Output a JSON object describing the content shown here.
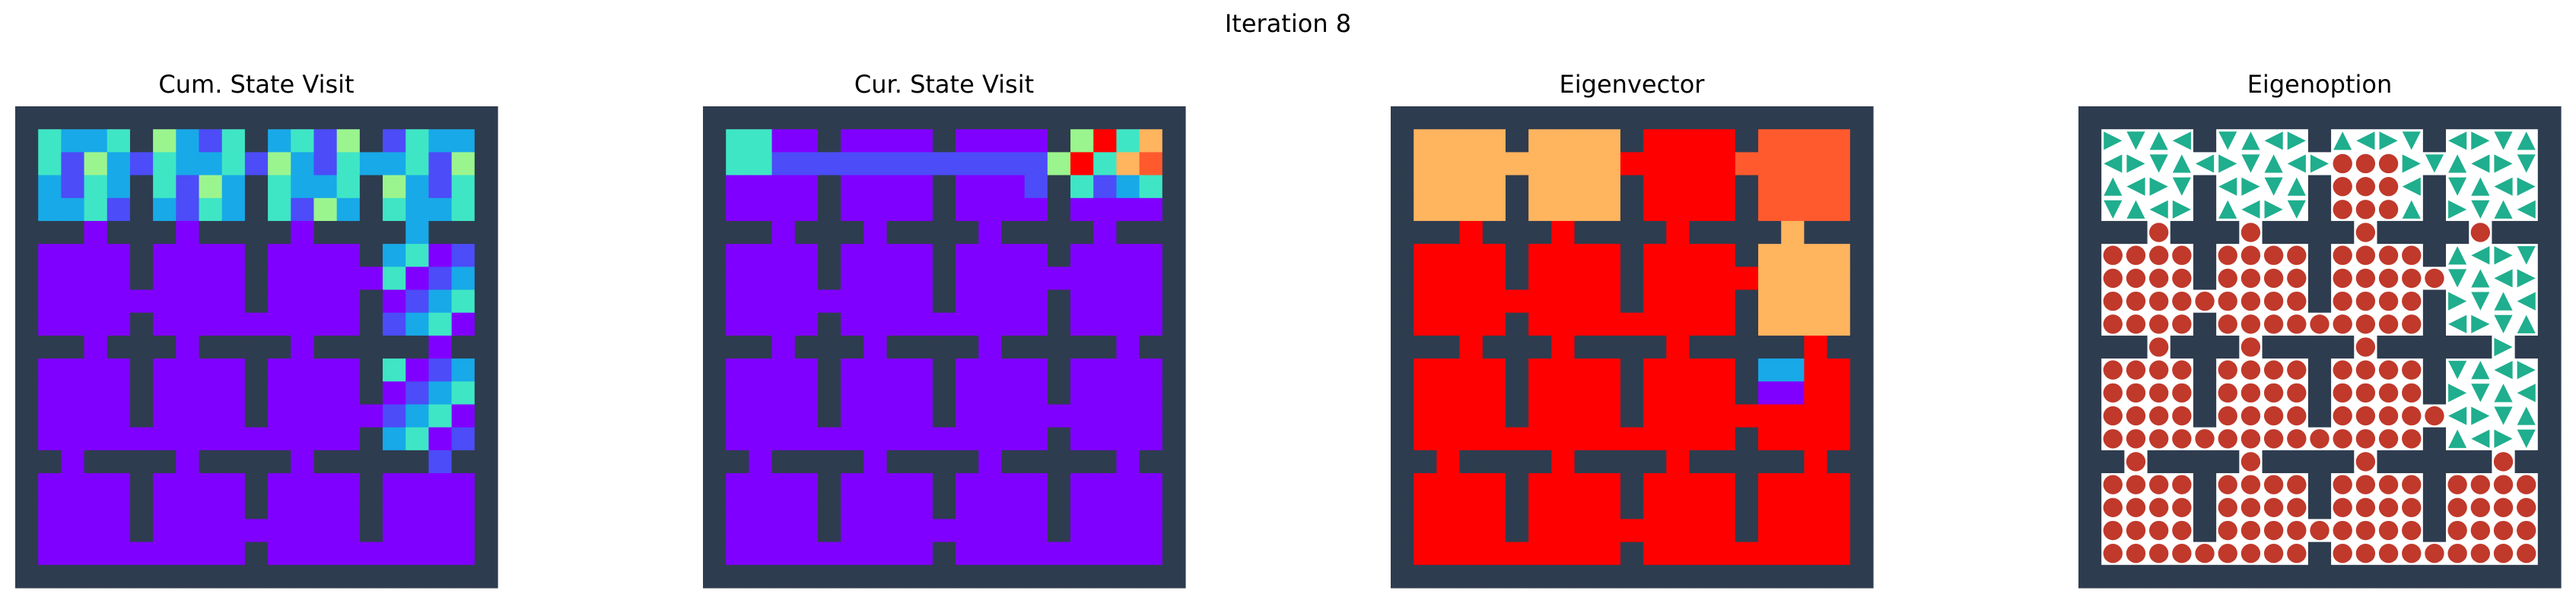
{
  "figure": {
    "suptitle": "Iteration 8"
  },
  "colors": {
    "wall": "#2e3c4f",
    "floor_white": "#ffffff",
    "arrow": "#1fae8e",
    "dot": "#c0392b"
  },
  "legend": {
    "colormap": "rainbow"
  },
  "chart_data": [
    {
      "type": "heatmap",
      "title": "Cum. State Visit",
      "grid_size": 21,
      "rows": [
        "###################",
        "#R10##2255##330##21#",
        "#313##1222##2222##43#",
        "#1111111111122222233#",
        "#314##1133##0222##42#",
        "#331##2233##0011##31#",
        "#333##2233##0001##20#",
        "#####################",
        "#0000##0000##0000##12#",
        "#0000##0000##0000##13#",
        "#0000000000000000004#",
        "#0000##0000##0000##43#",
        "#0000##0000##0000##03#",
        "#####################"
      ]
    },
    {
      "type": "heatmap",
      "title": "Cur. State Visit"
    },
    {
      "type": "heatmap",
      "title": "Eigenvector"
    },
    {
      "type": "table",
      "title": "Eigenoption"
    }
  ]
}
